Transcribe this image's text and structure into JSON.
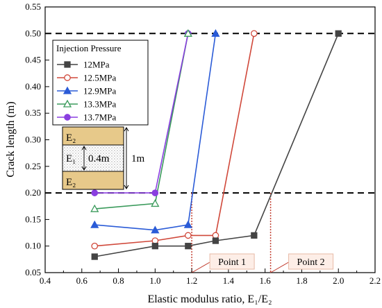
{
  "chart_data": {
    "type": "line",
    "xlabel": "Elastic modulus ratio, E₁/E₂",
    "ylabel": "Crack length (m)",
    "xlim": [
      0.4,
      2.2
    ],
    "ylim": [
      0.05,
      0.55
    ],
    "xticks": [
      "0.4",
      "0.6",
      "0.8",
      "1.0",
      "1.2",
      "1.4",
      "1.6",
      "1.8",
      "2.0",
      "2.2"
    ],
    "yticks": [
      "0.05",
      "0.10",
      "0.15",
      "0.20",
      "0.25",
      "0.30",
      "0.35",
      "0.40",
      "0.45",
      "0.50",
      "0.55"
    ],
    "grid": false,
    "legend": {
      "title": "Injection Pressure",
      "placement": "top-left"
    },
    "series": [
      {
        "name": "12MPa",
        "color": "#444444",
        "marker": "square-filled",
        "x": [
          0.67,
          1.0,
          1.18,
          1.33,
          1.54,
          2.0
        ],
        "y": [
          0.08,
          0.1,
          0.1,
          0.11,
          0.12,
          0.5
        ]
      },
      {
        "name": "12.5MPa",
        "color": "#d0483a",
        "marker": "circle-open",
        "x": [
          0.67,
          1.0,
          1.18,
          1.33,
          1.54
        ],
        "y": [
          0.1,
          0.11,
          0.12,
          0.12,
          0.5
        ]
      },
      {
        "name": "12.9MPa",
        "color": "#2a5bd7",
        "marker": "triangle-filled",
        "x": [
          0.67,
          1.0,
          1.18,
          1.33
        ],
        "y": [
          0.14,
          0.13,
          0.14,
          0.5
        ]
      },
      {
        "name": "13.3MPa",
        "color": "#3a9a5b",
        "marker": "triangle-open",
        "x": [
          0.67,
          1.0,
          1.18
        ],
        "y": [
          0.17,
          0.18,
          0.5
        ]
      },
      {
        "name": "13.7MPa",
        "color": "#8a3fe0",
        "marker": "circle-filled",
        "x": [
          0.67,
          1.0,
          1.18
        ],
        "y": [
          0.2,
          0.2,
          0.5
        ]
      }
    ],
    "reference_lines": [
      {
        "orientation": "horizontal",
        "y": 0.5,
        "style": "dashed"
      },
      {
        "orientation": "horizontal",
        "y": 0.2,
        "style": "dashed"
      }
    ],
    "annotations": [
      {
        "label": "Point 1",
        "x": 1.2
      },
      {
        "label": "Point 2",
        "x": 1.63
      }
    ],
    "inset": {
      "top_label": "E₂",
      "middle_label": "E₁",
      "bottom_label": "E₂",
      "thickness_label": "0.4m",
      "height_label": "1m"
    }
  }
}
